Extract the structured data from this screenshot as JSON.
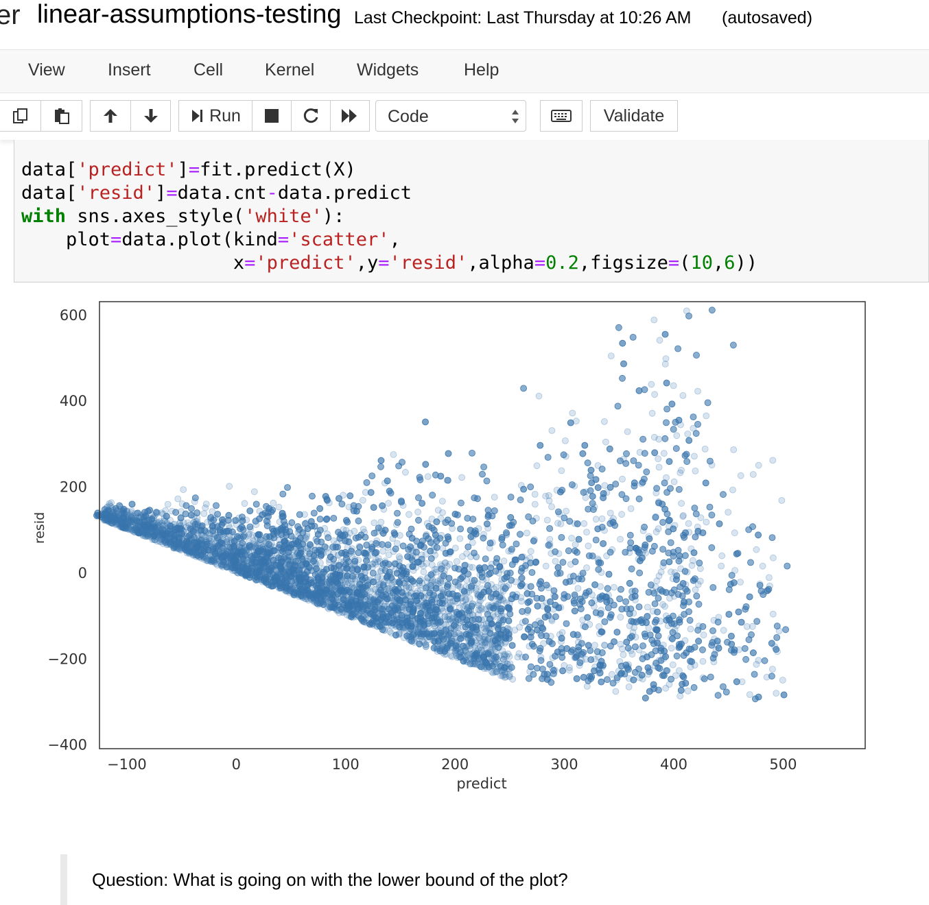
{
  "header": {
    "logo_fragment": "er",
    "notebook_title": "linear-assumptions-testing",
    "checkpoint": "Last Checkpoint: Last Thursday at 10:26 AM",
    "autosave_status": "(autosaved)"
  },
  "menu": {
    "items": [
      "View",
      "Insert",
      "Cell",
      "Kernel",
      "Widgets",
      "Help"
    ]
  },
  "toolbar": {
    "copy_icon": "copy-icon",
    "paste_icon": "paste-icon",
    "move_up_icon": "arrow-up-icon",
    "move_down_icon": "arrow-down-icon",
    "run_label": "Run",
    "stop_icon": "stop-icon",
    "restart_icon": "restart-icon",
    "run_all_icon": "fast-forward-icon",
    "cell_type": "Code",
    "keyboard_icon": "keyboard-icon",
    "validate_label": "Validate"
  },
  "code_cell": {
    "lines": [
      "data['predict']=fit.predict(X)",
      "data['resid']=data.cnt-data.predict",
      "with sns.axes_style('white'):",
      "    plot=data.plot(kind='scatter',",
      "                   x='predict',y='resid',alpha=0.2,figsize=(10,6))"
    ]
  },
  "chart_data": {
    "type": "scatter",
    "title": "",
    "xlabel": "predict",
    "ylabel": "resid",
    "xlim": [
      -125,
      575
    ],
    "ylim": [
      -410,
      630
    ],
    "xticks": [
      -100,
      0,
      100,
      200,
      300,
      400,
      500
    ],
    "yticks": [
      -400,
      -200,
      0,
      200,
      400,
      600
    ],
    "color": "#3a76b0",
    "alpha": 0.2,
    "grid": false,
    "lower_bound_line": {
      "x": [
        -130,
        250
      ],
      "y": [
        130,
        -250
      ]
    },
    "point_cloud": {
      "x_range": [
        -130,
        505
      ],
      "y_max_approx": 650,
      "y_min_approx": -370
    }
  },
  "markdown_cell": {
    "text": "Question: What is going on with the lower bound of the plot?"
  }
}
